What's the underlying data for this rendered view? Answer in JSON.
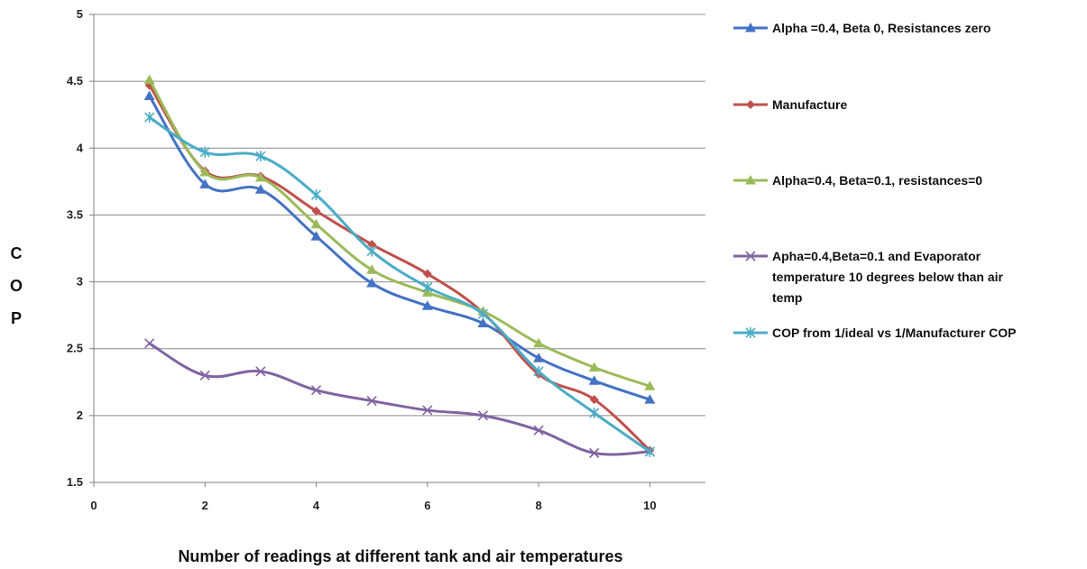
{
  "chart_data": {
    "type": "line",
    "title": "",
    "xlabel": "Number of readings at different tank and air temperatures",
    "ylabel": "COP",
    "xlim": [
      0,
      11
    ],
    "ylim": [
      1.5,
      5
    ],
    "x_ticks": [
      "0",
      "2",
      "4",
      "6",
      "8",
      "10"
    ],
    "y_ticks": [
      "1.5",
      "2",
      "2.5",
      "3",
      "3.5",
      "4",
      "4.5",
      "5"
    ],
    "grid": "horizontal",
    "legend_position": "right",
    "x": [
      1,
      2,
      3,
      4,
      5,
      6,
      7,
      8,
      9,
      10
    ],
    "series": [
      {
        "name": "Alpha =0.4, Beta 0, Resistances zero",
        "color": "#4472C4",
        "marker": "triangle",
        "values": [
          4.39,
          3.73,
          3.69,
          3.34,
          2.99,
          2.82,
          2.69,
          2.43,
          2.26,
          2.12
        ]
      },
      {
        "name": "Manufacture",
        "color": "#C0504D",
        "marker": "diamond",
        "values": [
          4.47,
          3.83,
          3.79,
          3.53,
          3.28,
          3.06,
          2.77,
          2.31,
          2.12,
          1.74
        ]
      },
      {
        "name": "Alpha=0.4, Beta=0.1, resistances=0",
        "color": "#9BBB59",
        "marker": "triangle",
        "values": [
          4.51,
          3.82,
          3.78,
          3.43,
          3.09,
          2.92,
          2.78,
          2.54,
          2.36,
          2.22
        ]
      },
      {
        "name": "Apha=0.4,Beta=0.1 and Evaporator temperature 10 degrees below than air temp",
        "legend_lines": [
          "Apha=0.4,Beta=0.1 and Evaporator",
          "temperature 10 degrees below than air",
          "temp"
        ],
        "color": "#8064A2",
        "marker": "x",
        "values": [
          2.54,
          2.3,
          2.33,
          2.19,
          2.11,
          2.04,
          2.0,
          1.89,
          1.72,
          1.73
        ]
      },
      {
        "name": "COP from 1/ideal vs 1/Manufacturer  COP",
        "color": "#4BACC6",
        "marker": "star",
        "values": [
          4.23,
          3.97,
          3.94,
          3.65,
          3.23,
          2.96,
          2.76,
          2.33,
          2.02,
          1.73
        ]
      }
    ]
  }
}
